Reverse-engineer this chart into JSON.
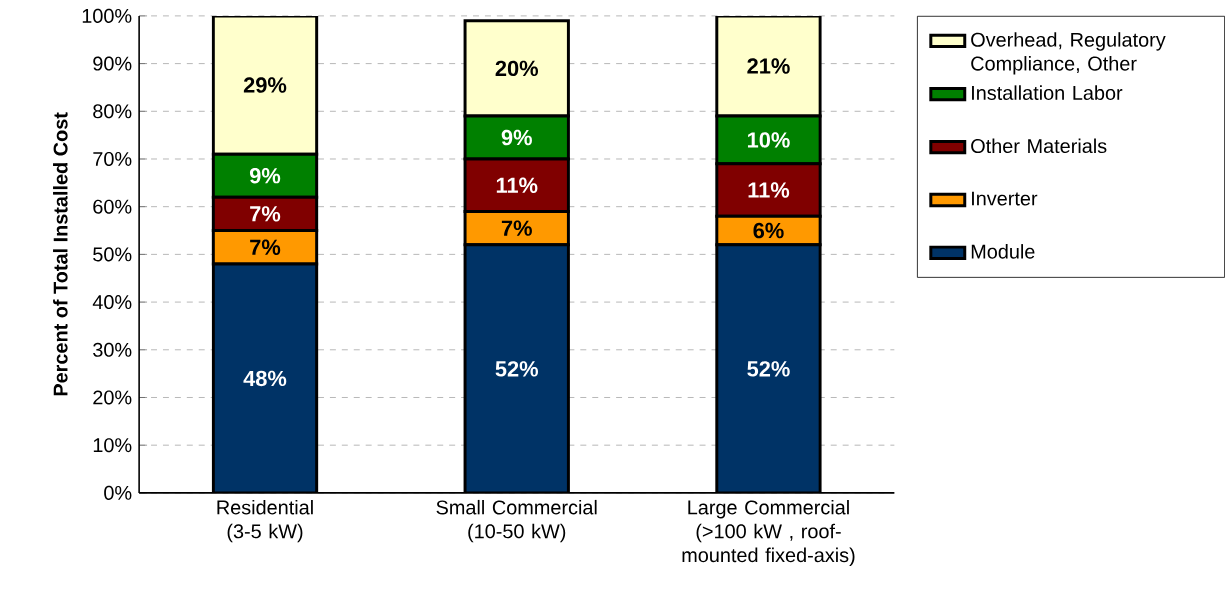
{
  "chart_data": {
    "type": "bar",
    "stacked": true,
    "ylabel": "Percent of Total Installed Cost",
    "categories": [
      "Residential (3-5 kW)",
      "Small Commercial (10-50 kW)",
      "Large Commercial (>100 kW , roof-mounted fixed-axis)"
    ],
    "series": [
      {
        "name": "Module",
        "color": "#003366",
        "values": [
          48,
          52,
          52
        ],
        "value_labels": [
          "48%",
          "52%",
          "52%"
        ]
      },
      {
        "name": "Inverter",
        "color": "#ff9900",
        "values": [
          7,
          7,
          6
        ],
        "value_labels": [
          "7%",
          "7%",
          "6%"
        ]
      },
      {
        "name": "Other Materials",
        "color": "#800000",
        "values": [
          7,
          11,
          11
        ],
        "value_labels": [
          "7%",
          "11%",
          "11%"
        ]
      },
      {
        "name": "Installation Labor",
        "color": "#008000",
        "values": [
          9,
          9,
          10
        ],
        "value_labels": [
          "9%",
          "9%",
          "10%"
        ]
      },
      {
        "name": "Overhead, Regulatory Compliance, Other",
        "color": "#ffffcc",
        "values": [
          29,
          20,
          21
        ],
        "value_labels": [
          "29%",
          "20%",
          "21%"
        ]
      }
    ],
    "ylim": [
      0,
      100
    ],
    "yticks": [
      {
        "value": 0,
        "label": "0%"
      },
      {
        "value": 10,
        "label": "10%"
      },
      {
        "value": 20,
        "label": "20%"
      },
      {
        "value": 30,
        "label": "30%"
      },
      {
        "value": 40,
        "label": "40%"
      },
      {
        "value": 50,
        "label": "50%"
      },
      {
        "value": 60,
        "label": "60%"
      },
      {
        "value": 70,
        "label": "70%"
      },
      {
        "value": 80,
        "label": "80%"
      },
      {
        "value": 90,
        "label": "90%"
      },
      {
        "value": 100,
        "label": "100%"
      }
    ],
    "grid": "y",
    "legend": "right"
  }
}
